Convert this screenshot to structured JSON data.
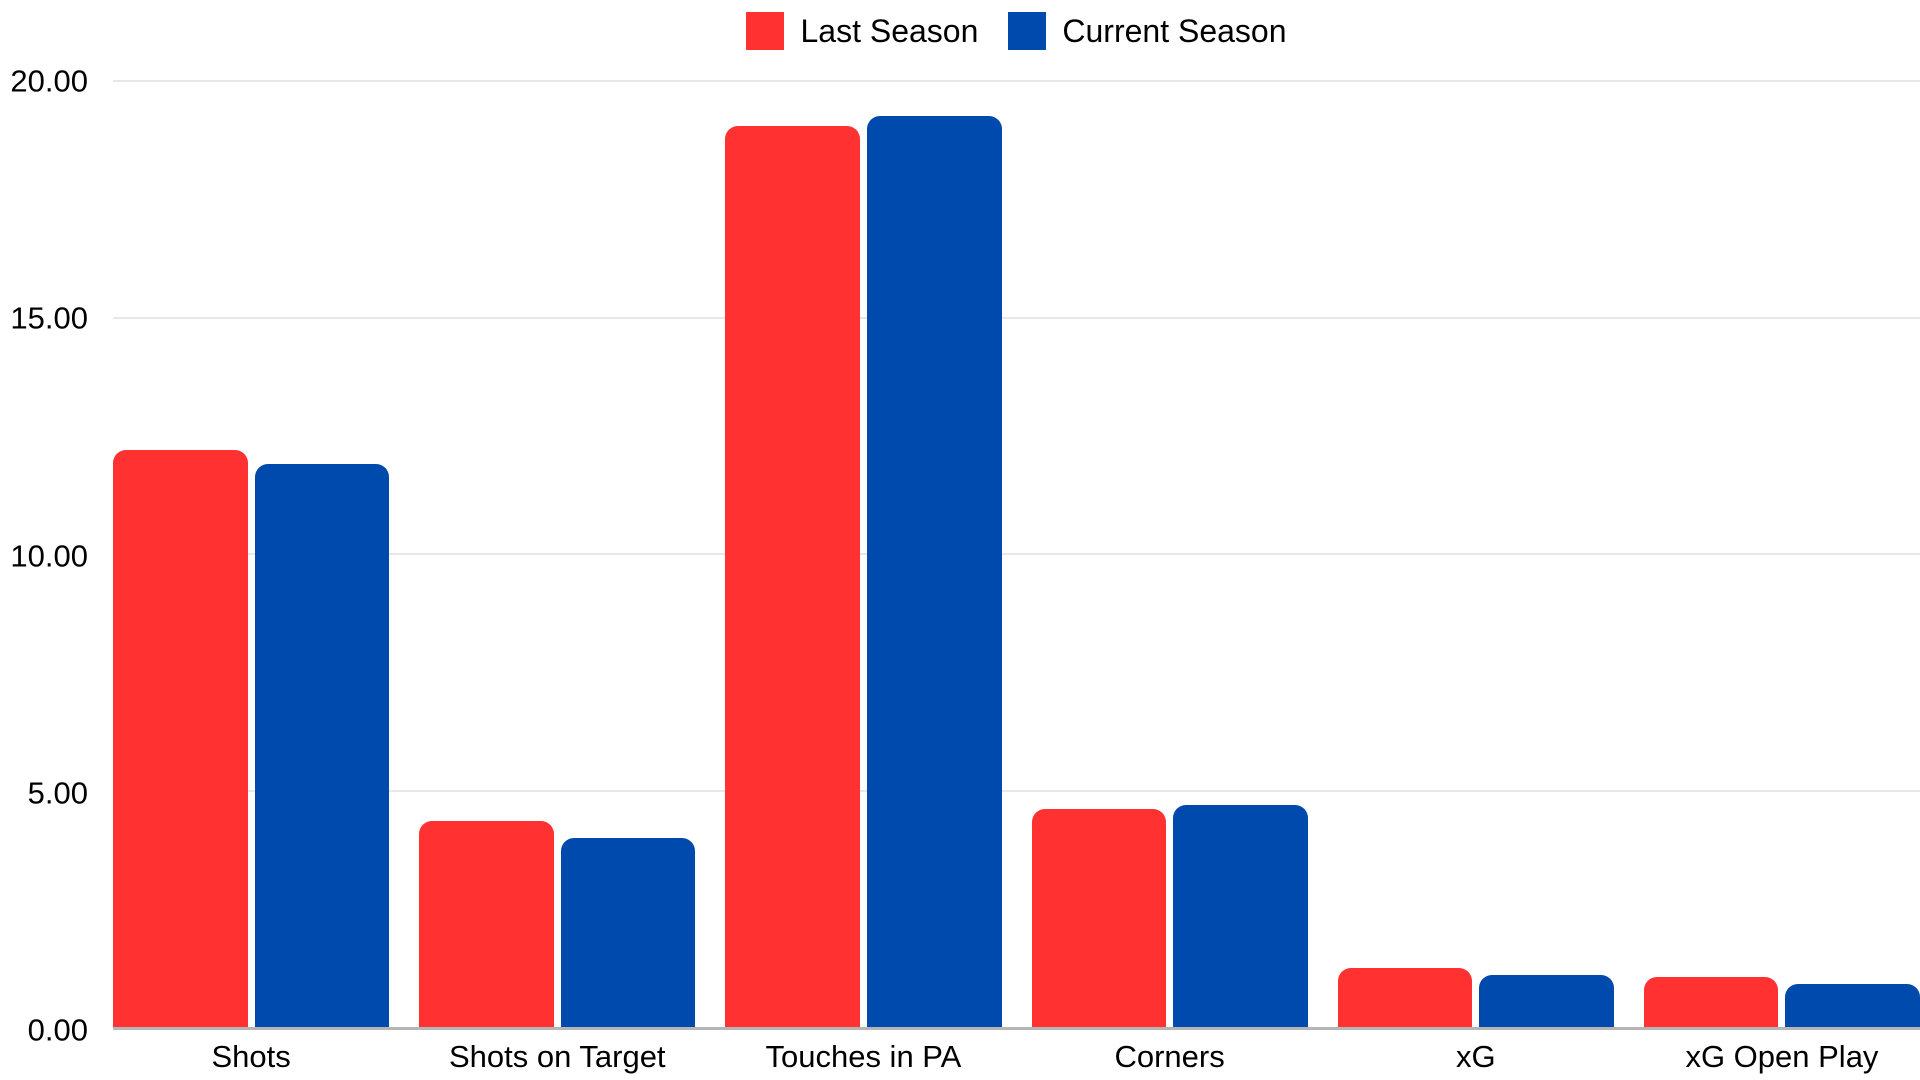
{
  "colors": {
    "background": "#ffffff",
    "grid": "#e8e8e8",
    "axis": "#b5b5b5",
    "text": "#000000",
    "last_season": "#FF3131",
    "current_season": "#004AAD"
  },
  "chart_data": {
    "type": "bar",
    "categories": [
      "Shots",
      "Shots on Target",
      "Touches in PA",
      "Corners",
      "xG",
      "xG Open Play"
    ],
    "series": [
      {
        "name": "Last Season",
        "color": "#FF3131",
        "values": [
          12.2,
          4.35,
          19.05,
          4.6,
          1.25,
          1.05
        ]
      },
      {
        "name": "Current Season",
        "color": "#004AAD",
        "values": [
          11.9,
          4.0,
          19.25,
          4.7,
          1.1,
          0.9
        ]
      }
    ],
    "title": "",
    "xlabel": "",
    "ylabel": "",
    "ylim": [
      0,
      20
    ],
    "yticks": [
      {
        "value": 0,
        "label": "0.00"
      },
      {
        "value": 5,
        "label": "5.00"
      },
      {
        "value": 10,
        "label": "10.00"
      },
      {
        "value": 15,
        "label": "15.00"
      },
      {
        "value": 20,
        "label": "20.00"
      }
    ],
    "grid": true,
    "legend_position": "top-center"
  }
}
